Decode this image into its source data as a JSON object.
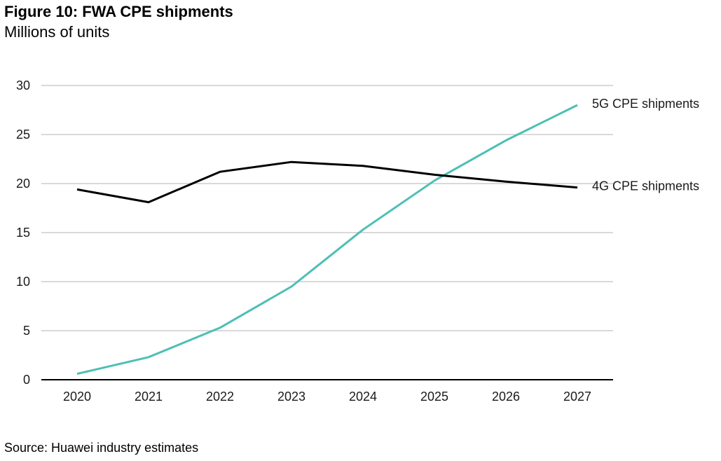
{
  "chart_data": {
    "type": "line",
    "title": "Figure 10: FWA CPE shipments",
    "subtitle": "Millions of units",
    "xlabel": "",
    "ylabel": "Millions of units",
    "categories": [
      "2020",
      "2021",
      "2022",
      "2023",
      "2024",
      "2025",
      "2026",
      "2027"
    ],
    "yticks": [
      0,
      5,
      10,
      15,
      20,
      25,
      30
    ],
    "ylim": [
      0,
      30
    ],
    "grid": true,
    "legend": "direct labels at right end of lines",
    "series": [
      {
        "name": "5G CPE shipments",
        "color": "#4dbfb4",
        "values": [
          0.6,
          2.3,
          5.3,
          9.5,
          15.3,
          20.3,
          24.4,
          28.0
        ]
      },
      {
        "name": "4G CPE shipments",
        "color": "#000000",
        "values": [
          19.4,
          18.1,
          21.2,
          22.2,
          21.8,
          20.9,
          20.2,
          19.6
        ]
      }
    ],
    "source": "Source: Huawei industry estimates"
  }
}
